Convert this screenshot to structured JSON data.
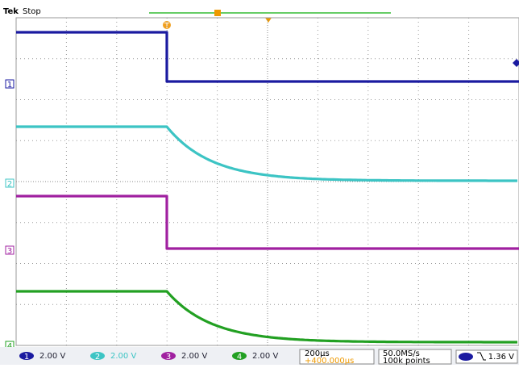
{
  "header": {
    "brand": "Tek",
    "status": "Stop"
  },
  "channels": [
    {
      "label": "1",
      "scale": "2.00 V"
    },
    {
      "label": "2",
      "scale": "2.00 V"
    },
    {
      "label": "3",
      "scale": "2.00 V"
    },
    {
      "label": "4",
      "scale": "2.00 V"
    }
  ],
  "trigger_marker": "T",
  "timebase": {
    "scale": "200µs",
    "offset": "+400.000µs"
  },
  "acquisition": {
    "rate": "50.0MS/s",
    "length": "100k points"
  },
  "trigger": {
    "level": "1.36 V"
  }
}
